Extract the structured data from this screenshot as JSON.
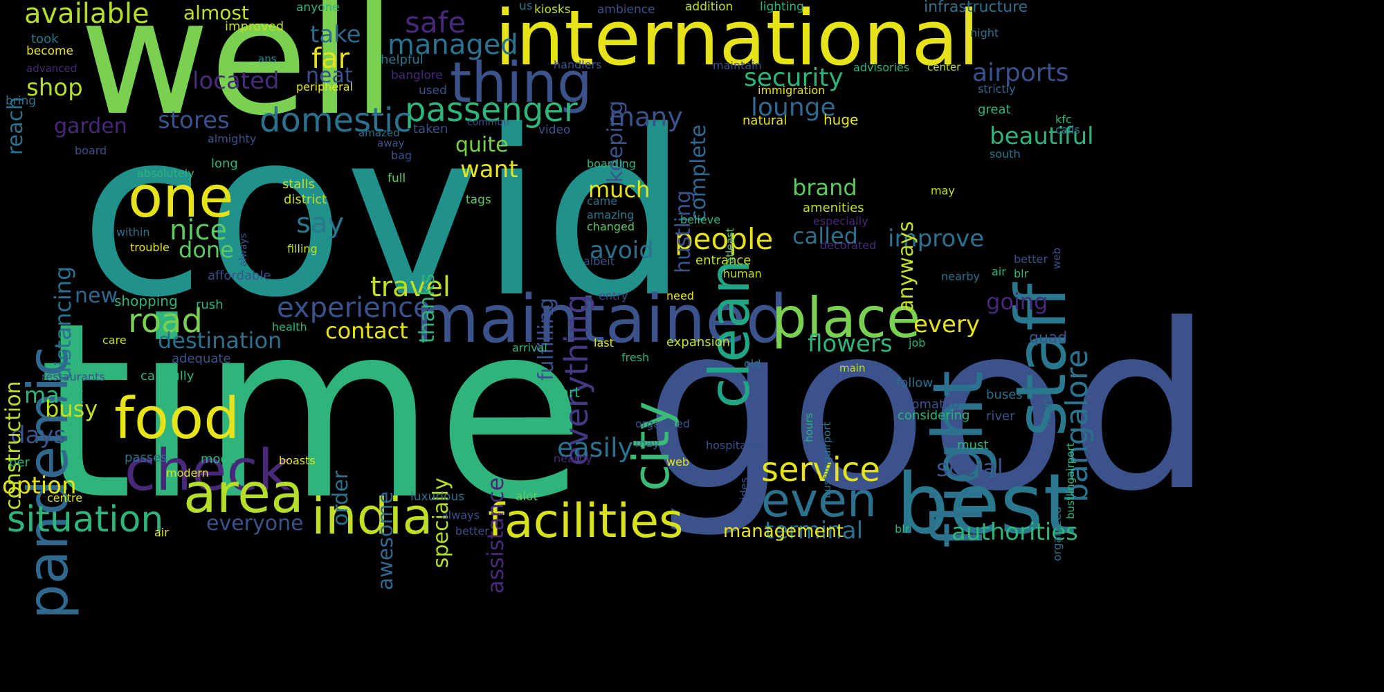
{
  "palette": {
    "background": "#000000",
    "teal": "#21918c",
    "green": "#2fb47c",
    "lime": "#7ad151",
    "yellow": "#e6e419",
    "blue": "#3b528b",
    "slate": "#2c728e",
    "purple": "#482878",
    "violet": "#440154"
  },
  "words": [
    "covid",
    "time",
    "good",
    "well",
    "international",
    "best",
    "maintained",
    "flight",
    "staff",
    "pandemic",
    "food",
    "check",
    "one",
    "india",
    "facilities",
    "area",
    "place",
    "clean",
    "city",
    "thing",
    "even",
    "bangalore",
    "passenger",
    "domestic",
    "road",
    "situation",
    "experience",
    "travel",
    "service",
    "people",
    "safe",
    "take",
    "managed",
    "far",
    "shop",
    "stores",
    "garden",
    "neat",
    "located",
    "security",
    "lounge",
    "airports",
    "everything",
    "many",
    "quite",
    "want",
    "much",
    "say",
    "nice",
    "done",
    "avoid",
    "easily",
    "called",
    "improve",
    "brand",
    "every",
    "flowers",
    "contact",
    "destination",
    "new",
    "shopping",
    "mask",
    "busy",
    "days",
    "option",
    "everyone",
    "terminal",
    "authorities",
    "social",
    "going",
    "construction",
    "distancing",
    "reach",
    "available",
    "almost",
    "anyone",
    "improved",
    "ans",
    "become",
    "advanced",
    "bring",
    "took",
    "helpful",
    "banglore",
    "peripheral",
    "used",
    "taken",
    "amazed",
    "away",
    "common",
    "video",
    "almighty",
    "board",
    "bag",
    "absolutely",
    "long",
    "stalls",
    "district",
    "within",
    "trouble",
    "filling",
    "full",
    "tags",
    "kiosks",
    "ambience",
    "addition",
    "lighting",
    "infrastructure",
    "us",
    "night",
    "maintain",
    "handlers",
    "advisories",
    "center",
    "strictly",
    "immigration",
    "natural",
    "huge",
    "kfc",
    "great",
    "calls",
    "south",
    "big",
    "undergoing",
    "arrangements",
    "back",
    "come",
    "procedure",
    "waiting",
    "screening",
    "renovation",
    "individual",
    "beautiful",
    "anyways",
    "hustling",
    "complete",
    "keeping",
    "fulfilling",
    "thanks",
    "assistance",
    "order",
    "awesome",
    "specially",
    "boarding",
    "came",
    "amazing",
    "changed",
    "atleast",
    "amenities",
    "believe",
    "especially",
    "decorated",
    "entrance",
    "albeit",
    "human",
    "affordable",
    "rush",
    "entry",
    "management",
    "need",
    "health",
    "expansion",
    "last",
    "care",
    "arrival",
    "fresh",
    "job",
    "quad",
    "adequate",
    "carefully",
    "restaurants",
    "per",
    "passes",
    "mode",
    "modern",
    "boasts",
    "part",
    "old",
    "main",
    "hours",
    "bustlingairport",
    "organized",
    "hospitality",
    "follow",
    "automated",
    "buses",
    "river",
    "considering",
    "must",
    "sides",
    "luxurious",
    "alot",
    "centre",
    "always",
    "better",
    "air",
    "blr",
    "nearby",
    "web",
    "may"
  ]
}
